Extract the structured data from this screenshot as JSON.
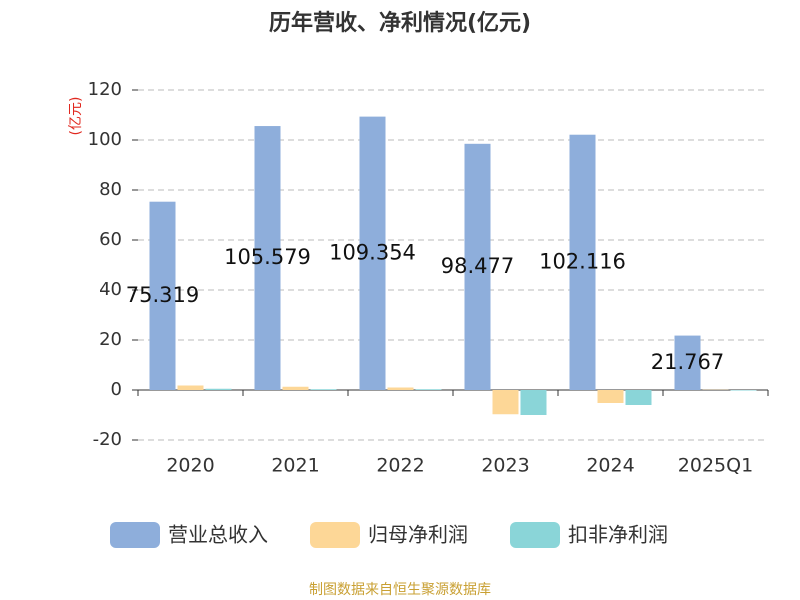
{
  "chart_data": {
    "type": "bar",
    "title": "历年营收、净利情况(亿元)",
    "y_label": "(亿元)",
    "categories": [
      "2020",
      "2021",
      "2022",
      "2023",
      "2024",
      "2025Q1"
    ],
    "series": [
      {
        "name": "营业总收入",
        "color": "#8eaedb",
        "values": [
          75.319,
          105.579,
          109.354,
          98.477,
          102.116,
          21.767
        ],
        "show_labels": true
      },
      {
        "name": "归母净利润",
        "color": "#fdd797",
        "values": [
          1.8,
          1.3,
          1.0,
          -9.7,
          -5.2,
          0.1
        ]
      },
      {
        "name": "扣非净利润",
        "color": "#8ad5d8",
        "values": [
          0.5,
          0.3,
          0.3,
          -10.0,
          -6.0,
          -0.2
        ]
      }
    ],
    "ylim": [
      -20,
      120
    ],
    "yticks": [
      -20,
      0,
      20,
      40,
      60,
      80,
      100,
      120
    ],
    "grid": true,
    "source": "制图数据来自恒生聚源数据库"
  }
}
